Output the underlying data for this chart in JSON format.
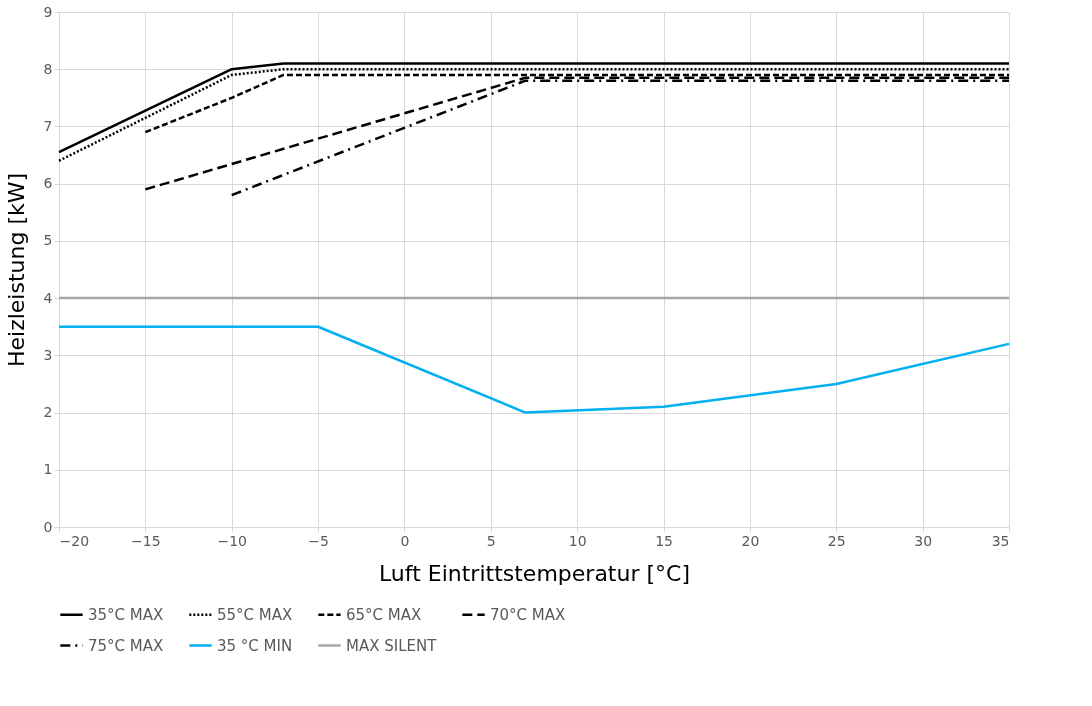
{
  "chart_data": {
    "type": "line",
    "xlabel": "Luft Eintrittstemperatur [°C]",
    "ylabel": "Heizleistung [kW]",
    "xlim": [
      -20,
      35
    ],
    "xticks": [
      -20,
      -15,
      -10,
      -5,
      0,
      5,
      10,
      15,
      20,
      25,
      30,
      35
    ],
    "ylim": [
      0,
      9
    ],
    "yticks": [
      0,
      1,
      2,
      3,
      4,
      5,
      6,
      7,
      8,
      9
    ],
    "grid": true,
    "legend": "bottom",
    "series": [
      {
        "name": "35°C MAX",
        "color": "#000000",
        "line_style": "solid",
        "x": [
          -20,
          -10,
          -7,
          35
        ],
        "values": [
          6.55,
          8.0,
          8.1,
          8.1
        ]
      },
      {
        "name": "55°C MAX",
        "color": "#000000",
        "line_style": "dotted",
        "x": [
          -20,
          -10,
          -7,
          35
        ],
        "values": [
          6.4,
          7.9,
          8.0,
          8.0
        ]
      },
      {
        "name": "65°C MAX",
        "color": "#000000",
        "line_style": "dashed",
        "x": [
          -15,
          -10,
          -7,
          35
        ],
        "values": [
          6.9,
          7.5,
          7.9,
          7.9
        ]
      },
      {
        "name": "70°C MAX",
        "color": "#000000",
        "line_style": "longdashed",
        "x": [
          -15,
          7,
          35
        ],
        "values": [
          5.9,
          7.85,
          7.85
        ]
      },
      {
        "name": "75°C MAX",
        "color": "#000000",
        "line_style": "dashdot",
        "x": [
          -10,
          7,
          35
        ],
        "values": [
          5.8,
          7.8,
          7.8
        ]
      },
      {
        "name": "35 °C MIN",
        "color": "#00b0f0",
        "line_style": "solid",
        "x": [
          -20,
          -5,
          7,
          15,
          25,
          35
        ],
        "values": [
          3.5,
          3.5,
          2.0,
          2.1,
          2.5,
          3.2
        ]
      },
      {
        "name": "MAX SILENT",
        "color": "#a6a6a6",
        "line_style": "solid",
        "x": [
          -20,
          35
        ],
        "values": [
          4,
          4
        ]
      }
    ]
  }
}
